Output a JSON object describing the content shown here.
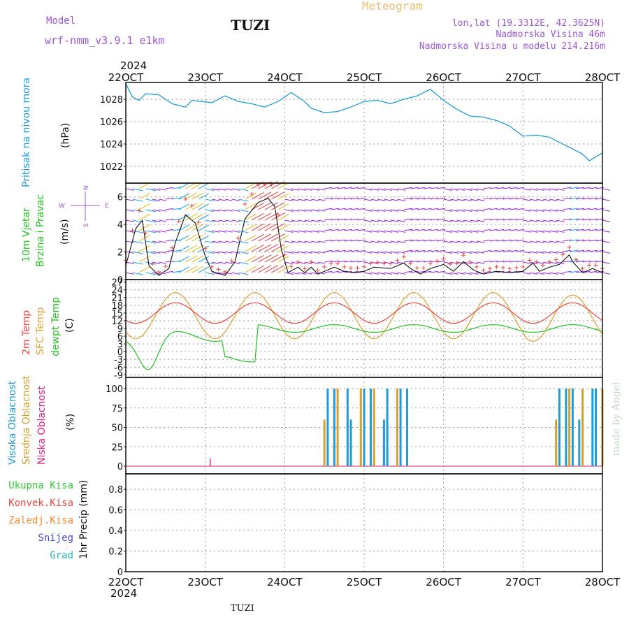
{
  "header": {
    "model_label": "Model",
    "model_name": "wrf-nmm_v3.9.1  e1km",
    "station": "TUZI",
    "product": "Meteogram",
    "lonlat": "lon,lat (19.3312E, 42.3625N)",
    "elevation": "Nadmorska Visina 46m",
    "model_elevation": "Nadmorska Visina u modelu 214.216m",
    "footer_station": "TUZI",
    "credit": "made by Angel"
  },
  "colors": {
    "pressure": "#1e9bd8",
    "temp2m": "#e8473c",
    "sfc_temp": "#e0a030",
    "dewpt": "#22c322",
    "high_cloud": "#1e9bd8",
    "mid_cloud": "#d4a030",
    "low_cloud": "#d6207a",
    "title_purple": "#9b59d0",
    "meteogram_orange": "#e8c070"
  },
  "time_axis": {
    "year": "2024",
    "ticks": [
      "22OCT",
      "23OCT",
      "24OCT",
      "25OCT",
      "26OCT",
      "27OCT",
      "28OCT"
    ]
  },
  "chart_data": [
    {
      "type": "line",
      "name": "pressure",
      "ylabel": "Pritisak na nivou mora",
      "unit": "(hPa)",
      "ylim": [
        1020.5,
        1029.5
      ],
      "yticks": [
        1022,
        1024,
        1026,
        1028
      ],
      "grid": true,
      "x": [
        0,
        0.1,
        0.2,
        0.35,
        0.5,
        0.7,
        0.9,
        1.1,
        1.2,
        1.35,
        1.5,
        1.7,
        1.9,
        2.1,
        2.3,
        2.5,
        2.7,
        2.9,
        3.1,
        3.3,
        3.5,
        3.7,
        3.9,
        4.1,
        4.3,
        4.5,
        4.7,
        4.9,
        5.1,
        5.3,
        5.5,
        5.7,
        5.9,
        6.1,
        6.3,
        6.5,
        6.7,
        6.9,
        7.1,
        7.3,
        7.5,
        7.7,
        7.9,
        8.1,
        8.3,
        8.5,
        8.7,
        8.9,
        9.1,
        9.3,
        9.5,
        9.7,
        9.9,
        10.1,
        10.3,
        10.5,
        10.7,
        10.9,
        11.1,
        11.3,
        11.5,
        11.7,
        11.9,
        12.1,
        12.3,
        12.5,
        12.7,
        12.9,
        13.1,
        13.3,
        13.5,
        13.7,
        13.9,
        14.1,
        14.3,
        14.5,
        14.7,
        14.9,
        15.1,
        15.3,
        15.5,
        15.7,
        15.9,
        16.1,
        16.3,
        16.5,
        16.7,
        16.9,
        17.1,
        17.3,
        17.5,
        17.7,
        17.9,
        18.1,
        18.3,
        18.5,
        18.7,
        18.9,
        19.1,
        19.3,
        19.5,
        19.7,
        19.9,
        20.1,
        20.3,
        20.5,
        20.7,
        20.9,
        21.1,
        21.3,
        21.5,
        21.7,
        21.9,
        22.1,
        22.3,
        22.5,
        22.7,
        22.9,
        23.1,
        23.3,
        23.5,
        23.7,
        23.9,
        24.1,
        24.3,
        24.5,
        24.7,
        24.9,
        25.1,
        25.3,
        25.5,
        25.7,
        25.9,
        26.1,
        26.3,
        26.5,
        26.7,
        26.9,
        27.1,
        27.3,
        27.5,
        27.7,
        27.9,
        28.1,
        28.3,
        28.5,
        28.7,
        28.9,
        29.1,
        29.3,
        29.5,
        29.7,
        29.9,
        30.1,
        30.3,
        30.5,
        30.7,
        30.9,
        31.1,
        31.3,
        31.5,
        31.7,
        31.9,
        32.1,
        32.3,
        32.5,
        32.7,
        32.9,
        33.1,
        33.3,
        33.5,
        33.7,
        33.9,
        34.1,
        34.3,
        34.5,
        34.7,
        34.9,
        35.1,
        35.3,
        35.5,
        35.7,
        35.9,
        36.1,
        36.3,
        36.5,
        36.7,
        36.9,
        37.1,
        37.3,
        37.5,
        37.7,
        37.9,
        38.1,
        38.3,
        38.5,
        38.7,
        38.9,
        39.1,
        39.3,
        39.5,
        39.7,
        39.9,
        40.1,
        40.3,
        40.5,
        40.7,
        40.9,
        41.1,
        41.3,
        41.5,
        41.7,
        41.9,
        42.1,
        42.3,
        42.5,
        42.7,
        42.9,
        43.1,
        43.3,
        43.5,
        43.7,
        43.9,
        44.1,
        44.3,
        44.5,
        44.7,
        44.9,
        45.1,
        45.3,
        45.5,
        45.7,
        45.9,
        46.1,
        46.3,
        46.5,
        46.7,
        46.9,
        47.1,
        47.3,
        47.5,
        47.7,
        47.9,
        48.1,
        48.3,
        48.5,
        48.7,
        48.9,
        49.1,
        49.3,
        49.5,
        49.7,
        49.9,
        50.1,
        50.3,
        50.5,
        50.7,
        50.9,
        51.1,
        51.3,
        51.5,
        51.7,
        51.9,
        52.1,
        52.3,
        52.5,
        52.7,
        52.9,
        53.1,
        53.3,
        53.5,
        53.7,
        53.9,
        54.1,
        54.3,
        54.5,
        54.7,
        54.9,
        55.1,
        55.3,
        55.5,
        55.7,
        55.9,
        56.1,
        56.3,
        56.5,
        56.7,
        56.9,
        57.1,
        57.3,
        57.5,
        57.7,
        57.9,
        58.1,
        58.3,
        58.5,
        58.7,
        58.9,
        59.1,
        59.3,
        59.5,
        59.7,
        59.9,
        60.1,
        60.3,
        60.5,
        60.7,
        60.9,
        61.1,
        61.3,
        61.5,
        61.7,
        61.9,
        62.1,
        62.3,
        62.5,
        62.7,
        62.9,
        63.1,
        63.3,
        63.5,
        63.7,
        63.9,
        64.1,
        64.3,
        64.5,
        64.7,
        64.9,
        65.1,
        65.3,
        65.5,
        65.7,
        65.9,
        66.1,
        66.3,
        66.5,
        66.7,
        66.9,
        67.1,
        67.3,
        67.5,
        67.7,
        67.9,
        68.1,
        68.3,
        68.5,
        68.7,
        68.9,
        69.1,
        69.3,
        69.5,
        69.7,
        69.9,
        70.1,
        70.3,
        70.5,
        70.7,
        70.9,
        71.1,
        71.3,
        71.5,
        71.7,
        71.9,
        72.1,
        72.3,
        72.5,
        72.7,
        72.9,
        73.1,
        73.3,
        73.5,
        73.7,
        73.9,
        74.1,
        74.3,
        74.5,
        74.7,
        74.9,
        75.1,
        75.3,
        75.5,
        75.7,
        75.9,
        76.1,
        76.3,
        76.5,
        76.7,
        76.9,
        77.1,
        77.3,
        77.5,
        77.7,
        77.9,
        78.1,
        78.3,
        78.5,
        78.7,
        78.9,
        79.1,
        79.3,
        79.5,
        79.7,
        79.9,
        80.1,
        80.3,
        80.5,
        80.7,
        80.9,
        81.1,
        81.3,
        81.5,
        81.7,
        81.9,
        82.1,
        82.3,
        82.5,
        82.7,
        82.9,
        83.1,
        83.3,
        83.5,
        83.7,
        83.9,
        84.1,
        84.3,
        84.5,
        84.7,
        84.9,
        85.1,
        85.3,
        85.5,
        85.7,
        85.9,
        86.1,
        86.3,
        86.5,
        86.7,
        86.9,
        87.1,
        87.3,
        87.5,
        87.7,
        87.9,
        88.1,
        88.3,
        88.5,
        88.7,
        88.9,
        89.1,
        89.3,
        89.5,
        89.7,
        89.9,
        90.1,
        90.3,
        90.5,
        90.7,
        90.9,
        91.1,
        91.3,
        91.5,
        91.7,
        91.9,
        92.1,
        92.3,
        92.5,
        92.7,
        92.9,
        93.1,
        93.3,
        93.5,
        93.7,
        93.9,
        94.1,
        94.3,
        94.5,
        94.7,
        94.9,
        95.1,
        95.3,
        95.5,
        95.7,
        95.9,
        96.1,
        96.3,
        96.5,
        96.7,
        96.9,
        97.1,
        97.3,
        97.5,
        97.7,
        97.9,
        98.1,
        98.3,
        98.5,
        98.7,
        98.9,
        99.1,
        99.3,
        99.5,
        99.7,
        99.9,
        100.1,
        100.3,
        100.5,
        100.7,
        100.9,
        101.1,
        101.3,
        101.5,
        101.7,
        101.9,
        102.1,
        102.3,
        102.5,
        102.7,
        102.9,
        103.1,
        103.3,
        103.5,
        103.7,
        103.9,
        104.1,
        104.3,
        104.5,
        104.7,
        104.9,
        105.1,
        105.3,
        105.5,
        105.7,
        105.9,
        106.1,
        106.3,
        106.5,
        106.7,
        106.9,
        107.1,
        107.3,
        107.5,
        107.7,
        107.9,
        108.1,
        108.3,
        108.5,
        108.7,
        108.9,
        109.1,
        109.3,
        109.5,
        109.7,
        109.9,
        110.1,
        110.3,
        110.5,
        110.7,
        110.9,
        111.1,
        111.3,
        111.5,
        111.7,
        111.9,
        112.1,
        112.3,
        112.5,
        112.7,
        112.9,
        113.1,
        113.3,
        113.5,
        113.7,
        113.9,
        114.1,
        114.3,
        114.5,
        114.7,
        114.9,
        115.1,
        115.3,
        115.5,
        115.7,
        115.9,
        116.1,
        116.3,
        116.5,
        116.7,
        116.9,
        117.1,
        117.3,
        117.5,
        117.7,
        117.9,
        118.1,
        118.3,
        118.5,
        118.7,
        118.9,
        119.1,
        119.3,
        119.5,
        119.7,
        119.9,
        120.1,
        120.3,
        120.5,
        120.7,
        120.9,
        121.1,
        121.3,
        121.5,
        121.7,
        121.9,
        122.1,
        122.3,
        122.5,
        122.7,
        122.9,
        123.1,
        123.3,
        123.5,
        123.7,
        123.9,
        124.1,
        124.3,
        124.5,
        124.7,
        124.9,
        125.1,
        125.3,
        125.5,
        125.7,
        125.9,
        126.1,
        126.3,
        126.5,
        126.7,
        126.9,
        127.1,
        127.3,
        127.5,
        127.7,
        127.9,
        128.1,
        128.3,
        128.5,
        128.7,
        128.9,
        129.1,
        129.3,
        129.5,
        129.7,
        129.9,
        130.1,
        130.3,
        130.5,
        130.7,
        130.9,
        131.1,
        131.3,
        131.5,
        131.7,
        131.9,
        132.1,
        132.3,
        132.5,
        132.7,
        132.9,
        133.1,
        133.3,
        133.5,
        133.7,
        133.9,
        134.1,
        134.3,
        134.5,
        134.7,
        134.9,
        135.1,
        135.3,
        135.5,
        135.7,
        135.9,
        136.1,
        136.3,
        136.5,
        136.7,
        136.9,
        137.1,
        137.3,
        137.5,
        137.7,
        137.9,
        138.1,
        138.3,
        138.5,
        138.7,
        138.9,
        139.1,
        139.3,
        139.5,
        139.7,
        139.9,
        140.1,
        140.3,
        140.5,
        140.7,
        140.9,
        141.1,
        141.3,
        141.5,
        141.7,
        141.9,
        142.1,
        142.3,
        142.5,
        142.7,
        142.9,
        143.1,
        143.3,
        143.5,
        143.7,
        143.9,
        144
      ],
      "pressure_keypoints": [
        [
          0,
          1029.4
        ],
        [
          2,
          1028.2
        ],
        [
          4,
          1027.9
        ],
        [
          6,
          1028.5
        ],
        [
          10,
          1028.4
        ],
        [
          14,
          1027.6
        ],
        [
          18,
          1027.3
        ],
        [
          20,
          1027.9
        ],
        [
          26,
          1027.7
        ],
        [
          30,
          1028.3
        ],
        [
          34,
          1027.8
        ],
        [
          38,
          1027.6
        ],
        [
          42,
          1027.3
        ],
        [
          46,
          1027.8
        ],
        [
          50,
          1028.6
        ],
        [
          54,
          1027.8
        ],
        [
          56,
          1027.2
        ],
        [
          60,
          1026.8
        ],
        [
          64,
          1026.9
        ],
        [
          68,
          1027.3
        ],
        [
          72,
          1027.8
        ],
        [
          76,
          1027.9
        ],
        [
          80,
          1027.6
        ],
        [
          84,
          1028.0
        ],
        [
          88,
          1028.3
        ],
        [
          92,
          1028.9
        ],
        [
          96,
          1027.9
        ],
        [
          100,
          1027.1
        ],
        [
          104,
          1026.5
        ],
        [
          108,
          1026.4
        ],
        [
          112,
          1026.1
        ],
        [
          116,
          1025.6
        ],
        [
          120,
          1024.7
        ],
        [
          124,
          1024.8
        ],
        [
          128,
          1024.6
        ],
        [
          132,
          1024.0
        ],
        [
          136,
          1023.4
        ],
        [
          138,
          1023.1
        ],
        [
          140,
          1022.5
        ],
        [
          144,
          1023.2
        ]
      ],
      "keypoints_note": ""
    }
  ],
  "panels": {
    "wind": {
      "ylabel_a": "10m Vjetar",
      "ylabel_b": "Brzina i Pravac",
      "unit": "(m/s)",
      "compass": {
        "n": "N",
        "s": "S",
        "e": "E",
        "w": "W"
      },
      "yticks": [
        0,
        2,
        4,
        6
      ],
      "ylim": [
        0,
        7
      ],
      "speed_keypoints": [
        [
          0,
          1.0
        ],
        [
          6,
          3.7
        ],
        [
          10,
          4.3
        ],
        [
          14,
          1.0
        ],
        [
          20,
          0.3
        ],
        [
          26,
          0.8
        ],
        [
          30,
          2.7
        ],
        [
          36,
          4.7
        ],
        [
          42,
          4.1
        ],
        [
          48,
          1.7
        ],
        [
          52,
          0.6
        ],
        [
          60,
          0.3
        ],
        [
          66,
          1.3
        ],
        [
          72,
          4.4
        ],
        [
          80,
          5.6
        ],
        [
          86,
          5.9
        ],
        [
          90,
          5.3
        ],
        [
          94,
          2.2
        ],
        [
          98,
          0.5
        ],
        [
          104,
          0.9
        ],
        [
          108,
          0.5
        ],
        [
          112,
          0.9
        ],
        [
          116,
          0.4
        ],
        [
          120,
          0.6
        ],
        [
          126,
          0.9
        ],
        [
          132,
          0.6
        ],
        [
          138,
          0.5
        ],
        [
          144,
          0.6
        ],
        [
          150,
          0.9
        ],
        [
          160,
          0.8
        ],
        [
          168,
          1.2
        ],
        [
          172,
          0.8
        ],
        [
          178,
          0.4
        ],
        [
          184,
          0.8
        ],
        [
          192,
          1.1
        ],
        [
          198,
          0.6
        ],
        [
          204,
          1.3
        ],
        [
          210,
          0.7
        ],
        [
          216,
          0.4
        ],
        [
          224,
          0.6
        ],
        [
          232,
          0.5
        ],
        [
          240,
          0.6
        ],
        [
          246,
          1.2
        ],
        [
          250,
          0.6
        ],
        [
          256,
          0.9
        ],
        [
          262,
          1.1
        ],
        [
          268,
          1.8
        ],
        [
          270,
          1.3
        ],
        [
          276,
          0.5
        ],
        [
          282,
          0.8
        ],
        [
          288,
          0.5
        ],
        [
          292,
          1.1
        ]
      ]
    },
    "temperature": {
      "label_2m": "2m Temp",
      "label_sfc": "SFC Temp",
      "label_dewpt": "dewpt Temp",
      "unit": "(C)",
      "yticks": [
        "-9",
        "-6",
        "-3",
        "0",
        "3",
        "6",
        "9",
        "12",
        "15",
        "18",
        "21",
        "24",
        "27"
      ],
      "ylim": [
        -10,
        28
      ]
    },
    "clouds": {
      "label_high": "Visoka Oblacnost",
      "label_mid": "Srednja Oblacnost",
      "label_low": "Niska Oblacnost",
      "unit": "(%)",
      "yticks": [
        "0",
        "25",
        "50",
        "75",
        "100"
      ]
    },
    "precip": {
      "label_total": "Ukupna Kisa",
      "label_conv": "Konvek.Kisa",
      "label_frozen": "Zaledj.Kisa",
      "label_snow": "Snijeg",
      "label_grad": "Grad",
      "unit": "1hr Precip (mm)",
      "yticks": [
        "0",
        "0.2",
        "0.4",
        "0.6",
        "0.8"
      ],
      "legend_colors": [
        "#33cc33",
        "#e8473c",
        "#f08a30",
        "#4848e0",
        "#22b8b8"
      ]
    }
  }
}
